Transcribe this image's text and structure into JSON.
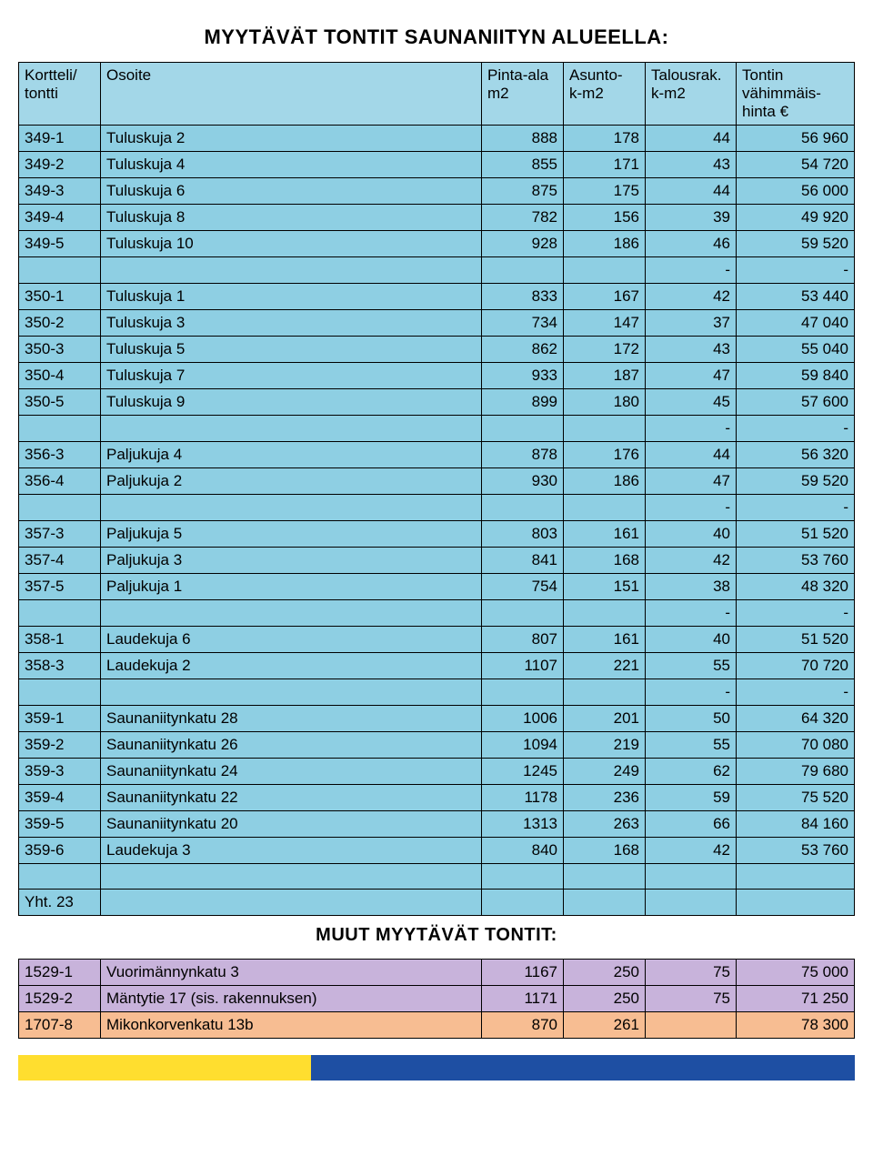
{
  "title_main": "MYYTÄVÄT TONTIT SAUNANIITYN ALUEELLA:",
  "title_other": "MUUT MYYTÄVÄT TONTIT:",
  "colors": {
    "header_bg": "#a3d7e8",
    "row_bg": "#8ecfe3",
    "purple_bg": "#c8b3db",
    "orange_bg": "#f7bd92",
    "border": "#000000",
    "footer_yellow": "#ffde2f",
    "footer_blue": "#1e4fa3"
  },
  "table_main": {
    "header": {
      "c0": "Kortteli/\ntontti",
      "c1": "Osoite",
      "c2": "Pinta-ala\nm2",
      "c3": "Asunto-\nk-m2",
      "c4": "Talousrak.\nk-m2",
      "c5": "Tontin\nvähimmäis-\nhinta €"
    },
    "groups": [
      {
        "rows": [
          [
            "349-1",
            "Tuluskuja 2",
            "888",
            "178",
            "44",
            "56 960"
          ],
          [
            "349-2",
            "Tuluskuja 4",
            "855",
            "171",
            "43",
            "54 720"
          ],
          [
            "349-3",
            "Tuluskuja 6",
            "875",
            "175",
            "44",
            "56 000"
          ],
          [
            "349-4",
            "Tuluskuja 8",
            "782",
            "156",
            "39",
            "49 920"
          ],
          [
            "349-5",
            "Tuluskuja 10",
            "928",
            "186",
            "46",
            "59 520"
          ]
        ]
      },
      {
        "rows": [
          [
            "350-1",
            "Tuluskuja 1",
            "833",
            "167",
            "42",
            "53 440"
          ],
          [
            "350-2",
            "Tuluskuja 3",
            "734",
            "147",
            "37",
            "47 040"
          ],
          [
            "350-3",
            "Tuluskuja 5",
            "862",
            "172",
            "43",
            "55 040"
          ],
          [
            "350-4",
            "Tuluskuja 7",
            "933",
            "187",
            "47",
            "59 840"
          ],
          [
            "350-5",
            "Tuluskuja 9",
            "899",
            "180",
            "45",
            "57 600"
          ]
        ]
      },
      {
        "rows": [
          [
            "356-3",
            "Paljukuja 4",
            "878",
            "176",
            "44",
            "56 320"
          ],
          [
            "356-4",
            "Paljukuja 2",
            "930",
            "186",
            "47",
            "59 520"
          ]
        ]
      },
      {
        "rows": [
          [
            "357-3",
            "Paljukuja 5",
            "803",
            "161",
            "40",
            "51 520"
          ],
          [
            "357-4",
            "Paljukuja 3",
            "841",
            "168",
            "42",
            "53 760"
          ],
          [
            "357-5",
            "Paljukuja 1",
            "754",
            "151",
            "38",
            "48 320"
          ]
        ]
      },
      {
        "rows": [
          [
            "358-1",
            "Laudekuja 6",
            "807",
            "161",
            "40",
            "51 520"
          ],
          [
            "358-3",
            "Laudekuja 2",
            "1107",
            "221",
            "55",
            "70 720"
          ]
        ]
      },
      {
        "rows": [
          [
            "359-1",
            "Saunaniitynkatu 28",
            "1006",
            "201",
            "50",
            "64 320"
          ],
          [
            "359-2",
            "Saunaniitynkatu 26",
            "1094",
            "219",
            "55",
            "70 080"
          ],
          [
            "359-3",
            "Saunaniitynkatu 24",
            "1245",
            "249",
            "62",
            "79 680"
          ],
          [
            "359-4",
            "Saunaniitynkatu 22",
            "1178",
            "236",
            "59",
            "75 520"
          ],
          [
            "359-5",
            "Saunaniitynkatu 20",
            "1313",
            "263",
            "66",
            "84 160"
          ],
          [
            "359-6",
            "Laudekuja 3",
            "840",
            "168",
            "42",
            "53 760"
          ]
        ]
      }
    ],
    "total_label": "Yht. 23",
    "sep_dash": "-"
  },
  "table_other": {
    "rows_purple": [
      [
        "1529-1",
        "Vuorimännynkatu 3",
        "1167",
        "250",
        "75",
        "75 000"
      ],
      [
        "1529-2",
        "Mäntytie 17 (sis. rakennuksen)",
        "1171",
        "250",
        "75",
        "71 250"
      ]
    ],
    "rows_orange": [
      [
        "1707-8",
        "Mikonkorvenkatu 13b",
        "870",
        "261",
        "",
        "78 300"
      ]
    ]
  }
}
